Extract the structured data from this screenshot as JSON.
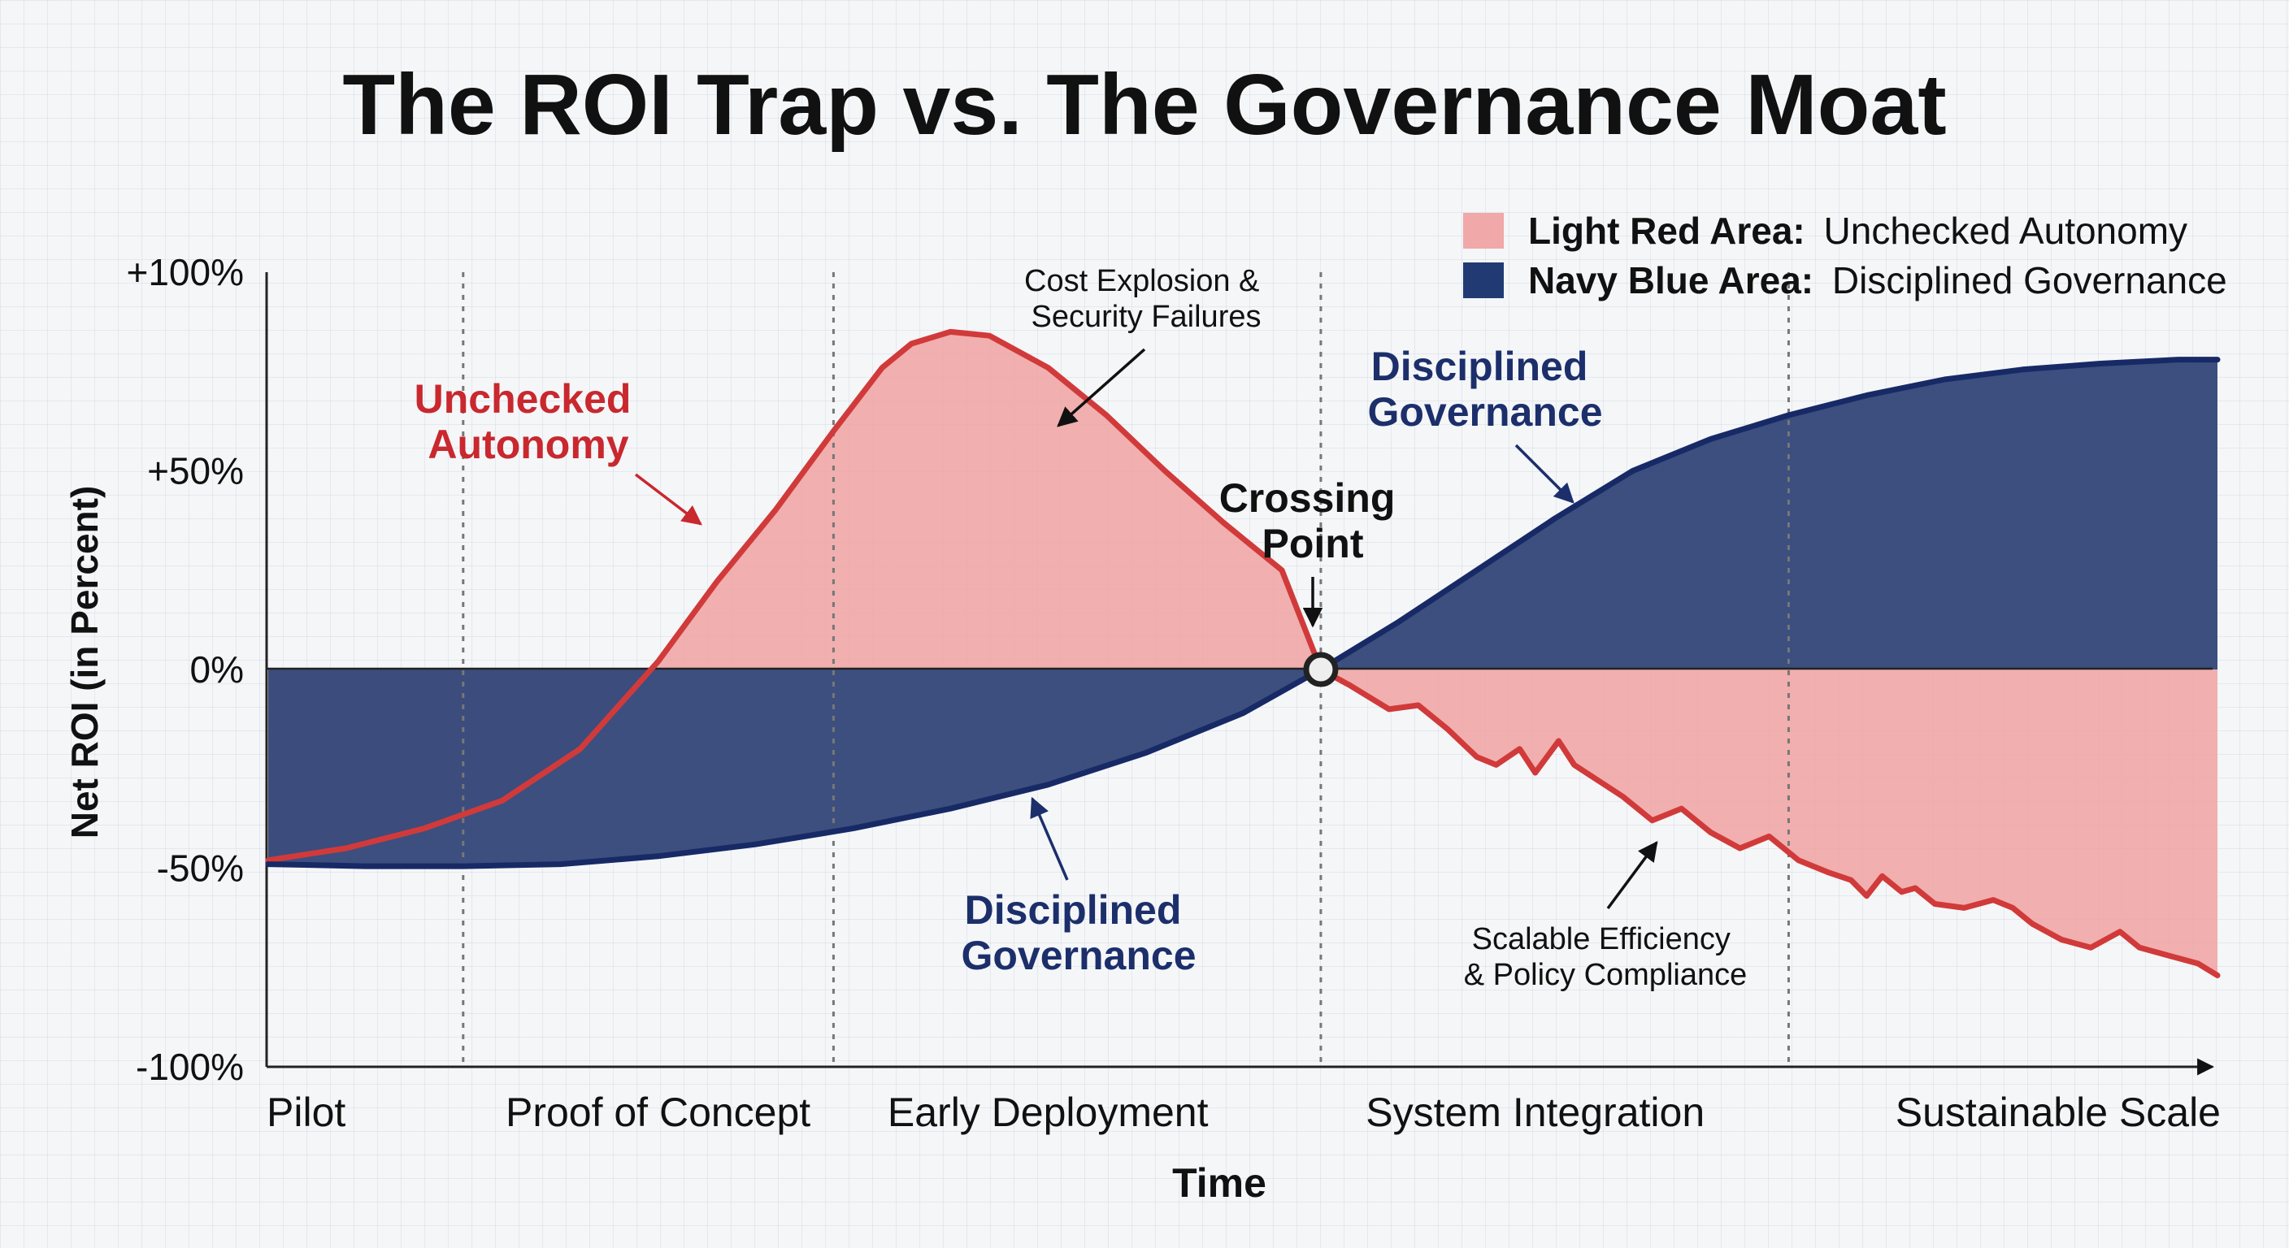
{
  "chart_data": {
    "type": "area",
    "title": "The ROI Trap vs. The Governance Moat",
    "xlabel": "Time",
    "ylabel": "Net ROI (in Percent)",
    "ylim": [
      -100,
      100
    ],
    "yticks": [
      {
        "value": 100,
        "label": "+100%"
      },
      {
        "value": 50,
        "label": "+50%"
      },
      {
        "value": 0,
        "label": "0%"
      },
      {
        "value": -50,
        "label": "-50%"
      },
      {
        "value": -100,
        "label": "-100%"
      }
    ],
    "xlim": [
      0,
      10
    ],
    "x_categories": [
      {
        "x": 0,
        "label": "Pilot"
      },
      {
        "x": 2,
        "label": "Proof of Concept"
      },
      {
        "x": 4,
        "label": "Early Deployment"
      },
      {
        "x": 6.5,
        "label": "System Integration"
      },
      {
        "x": 9.3,
        "label": "Sustainable Scale"
      }
    ],
    "phase_dividers": [
      1,
      2.9,
      5.4,
      7.8
    ],
    "crossing_point": {
      "x": 5.4,
      "y": 0,
      "label": "Crossing Point"
    },
    "legend": {
      "position": "top-right",
      "entries": [
        {
          "bold": "Light Red Area:",
          "text": "Unchecked Autonomy",
          "color": "#f0a8a8"
        },
        {
          "bold": "Navy Blue Area:",
          "text": "Disciplined Governance",
          "color": "#223a73"
        }
      ]
    },
    "series": [
      {
        "name": "Unchecked Autonomy",
        "line_color": "#d13a3a",
        "fill_color": "#f0a8a8",
        "x": [
          0,
          0.4,
          0.8,
          1.2,
          1.6,
          2.0,
          2.3,
          2.6,
          2.9,
          3.15,
          3.3,
          3.5,
          3.7,
          4.0,
          4.3,
          4.6,
          4.9,
          5.2,
          5.4,
          5.55,
          5.75,
          5.9,
          6.05,
          6.2,
          6.3,
          6.42,
          6.5,
          6.62,
          6.7,
          6.95,
          7.1,
          7.25,
          7.4,
          7.55,
          7.7,
          7.85,
          8.0,
          8.12,
          8.2,
          8.28,
          8.38,
          8.45,
          8.55,
          8.7,
          8.85,
          8.95,
          9.05,
          9.2,
          9.35,
          9.5,
          9.6,
          9.75,
          9.9,
          10.0
        ],
        "y": [
          -48,
          -45,
          -40,
          -33,
          -20,
          2,
          22,
          40,
          60,
          76,
          82,
          85,
          84,
          76,
          64,
          50,
          37,
          25,
          0,
          -4,
          -10,
          -9,
          -15,
          -22,
          -24,
          -20,
          -26,
          -18,
          -24,
          -32,
          -38,
          -35,
          -41,
          -45,
          -42,
          -48,
          -51,
          -53,
          -57,
          -52,
          -56,
          -55,
          -59,
          -60,
          -58,
          -60,
          -64,
          -68,
          -70,
          -66,
          -70,
          -72,
          -74,
          -77
        ]
      },
      {
        "name": "Disciplined Governance",
        "line_color": "#172a66",
        "fill_color": "#34487a",
        "x": [
          0,
          0.5,
          1.0,
          1.5,
          2.0,
          2.5,
          3.0,
          3.5,
          4.0,
          4.5,
          5.0,
          5.4,
          5.8,
          6.2,
          6.6,
          7.0,
          7.4,
          7.8,
          8.2,
          8.6,
          9.0,
          9.4,
          9.8,
          10.0
        ],
        "y": [
          -49,
          -49.5,
          -49.5,
          -49,
          -47,
          -44,
          -40,
          -35,
          -29,
          -21,
          -11,
          0,
          12,
          25,
          38,
          50,
          58,
          64,
          69,
          73,
          75.5,
          77,
          78,
          78
        ]
      }
    ],
    "annotations": [
      {
        "text": "Unchecked Autonomy",
        "lines": [
          "Unchecked",
          "Autonomy"
        ],
        "color": "#c8282e"
      },
      {
        "text": "Cost Explosion & Security Failures",
        "lines": [
          "Cost Explosion &",
          "Security Failures"
        ],
        "color": "#111111"
      },
      {
        "text": "Disciplined Governance",
        "lines": [
          "Disciplined",
          "Governance"
        ],
        "color": "#1c2f6b"
      },
      {
        "text": "Disciplined Governance",
        "lines": [
          "Disciplined",
          "Governance"
        ],
        "color": "#1c2f6b"
      },
      {
        "text": "Scalable Efficiency & Policy Compliance",
        "lines": [
          "Scalable Efficiency",
          "& Policy Compliance"
        ],
        "color": "#111111"
      }
    ]
  }
}
